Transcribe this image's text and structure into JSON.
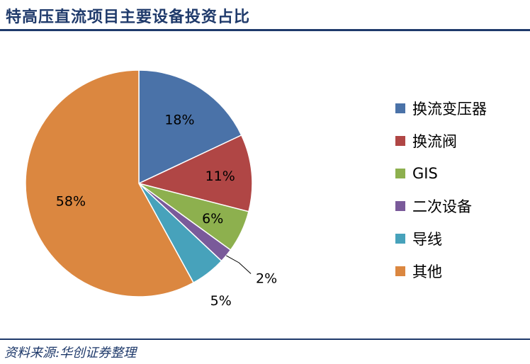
{
  "header": {
    "title": "特高压直流项目主要设备投资占比"
  },
  "footer": {
    "source": "资料来源:华创证券整理"
  },
  "chart_data": {
    "type": "pie",
    "title": "特高压直流项目主要设备投资占比",
    "categories": [
      "换流变压器",
      "换流阀",
      "GIS",
      "二次设备",
      "导线",
      "其他"
    ],
    "values": [
      18,
      11,
      6,
      2,
      5,
      58
    ],
    "labels": [
      "18%",
      "11%",
      "6%",
      "2%",
      "5%",
      "58%"
    ],
    "colors": [
      "#4a72a8",
      "#b04645",
      "#8db04e",
      "#7a5a9a",
      "#47a2bb",
      "#db8740"
    ],
    "legend_position": "right",
    "start_angle": "12 o'clock, clockwise"
  }
}
